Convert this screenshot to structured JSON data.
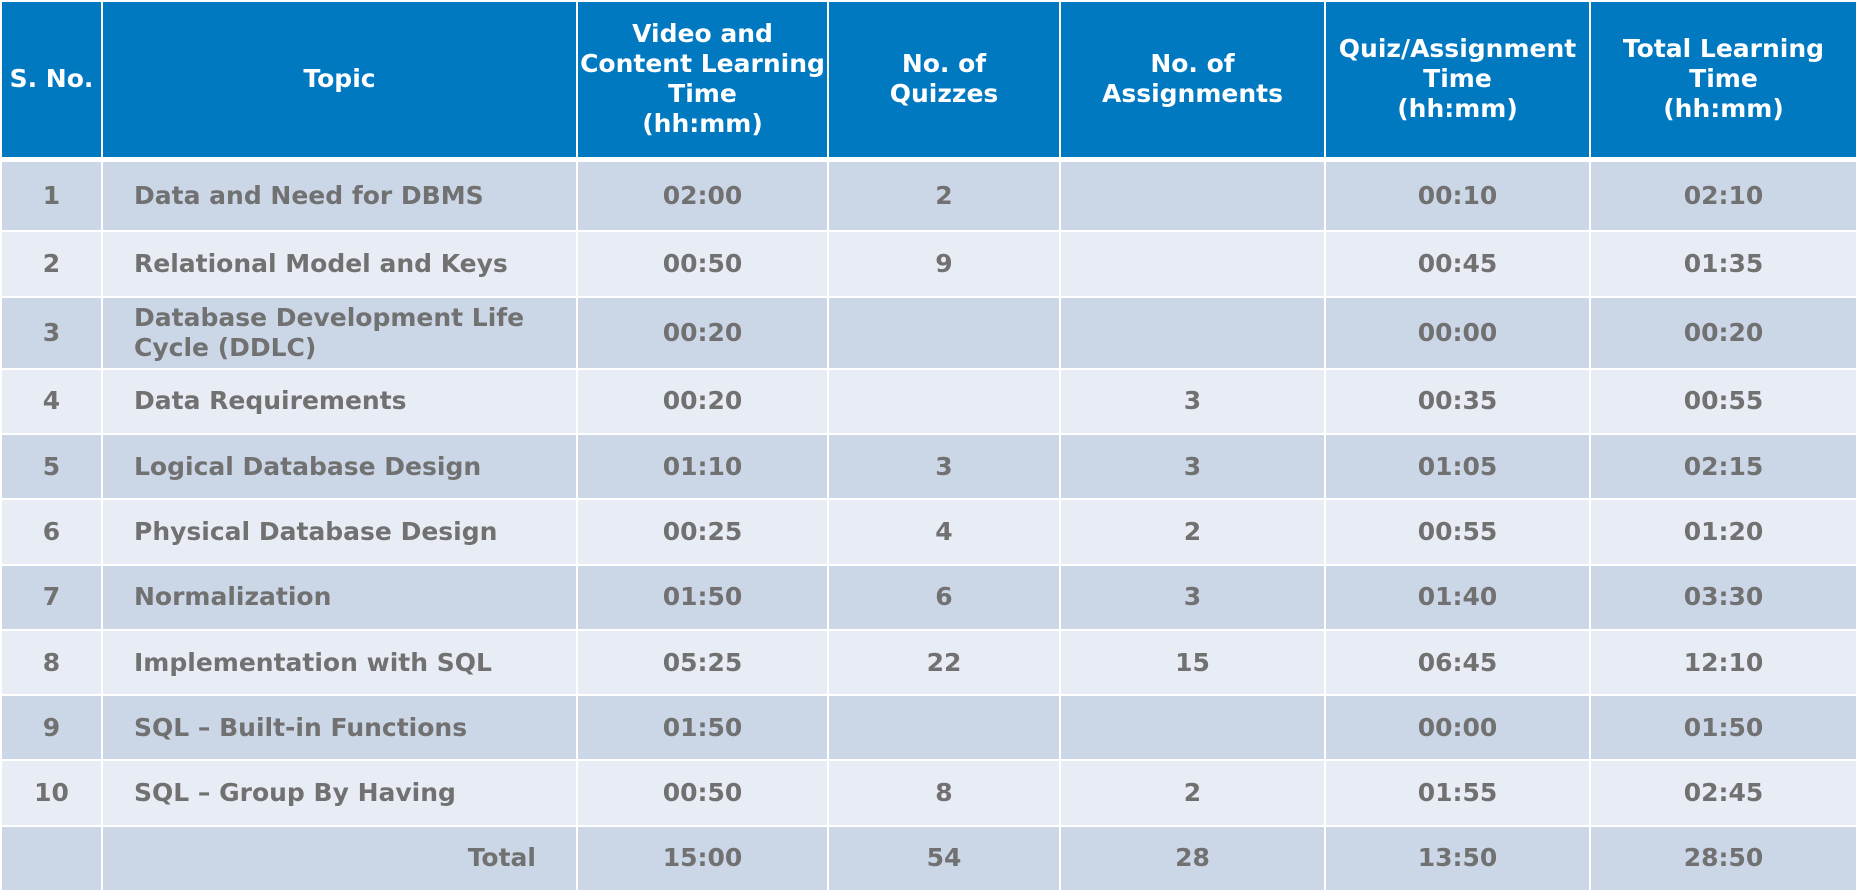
{
  "headers": [
    "S. No.",
    "Topic",
    "Video and\nContent Learning\nTime\n(hh:mm)",
    "No. of\nQuizzes",
    "No. of\nAssignments",
    "Quiz/Assignment\nTime\n(hh:mm)",
    "Total Learning\nTime\n(hh:mm)"
  ],
  "rows": [
    {
      "sno": "1",
      "topic": "Data and Need for DBMS",
      "video_time": "02:00",
      "quizzes": "2",
      "assignments": "",
      "qa_time": "00:10",
      "total_time": "02:10"
    },
    {
      "sno": "2",
      "topic": "Relational Model and Keys",
      "video_time": "00:50",
      "quizzes": "9",
      "assignments": "",
      "qa_time": "00:45",
      "total_time": "01:35"
    },
    {
      "sno": "3",
      "topic": "Database Development Life Cycle (DDLC)",
      "video_time": "00:20",
      "quizzes": "",
      "assignments": "",
      "qa_time": "00:00",
      "total_time": "00:20"
    },
    {
      "sno": "4",
      "topic": "Data Requirements",
      "video_time": "00:20",
      "quizzes": "",
      "assignments": "3",
      "qa_time": "00:35",
      "total_time": "00:55"
    },
    {
      "sno": "5",
      "topic": "Logical Database Design",
      "video_time": "01:10",
      "quizzes": "3",
      "assignments": "3",
      "qa_time": "01:05",
      "total_time": "02:15"
    },
    {
      "sno": "6",
      "topic": "Physical Database Design",
      "video_time": "00:25",
      "quizzes": "4",
      "assignments": "2",
      "qa_time": "00:55",
      "total_time": "01:20"
    },
    {
      "sno": "7",
      "topic": "Normalization",
      "video_time": "01:50",
      "quizzes": "6",
      "assignments": "3",
      "qa_time": "01:40",
      "total_time": "03:30"
    },
    {
      "sno": "8",
      "topic": "Implementation with SQL",
      "video_time": "05:25",
      "quizzes": "22",
      "assignments": "15",
      "qa_time": "06:45",
      "total_time": "12:10"
    },
    {
      "sno": "9",
      "topic": "SQL – Built-in Functions",
      "video_time": "01:50",
      "quizzes": "",
      "assignments": "",
      "qa_time": "00:00",
      "total_time": "01:50"
    },
    {
      "sno": "10",
      "topic": "SQL – Group By Having",
      "video_time": "00:50",
      "quizzes": "8",
      "assignments": "2",
      "qa_time": "01:55",
      "total_time": "02:45"
    }
  ],
  "total": {
    "label": "Total",
    "video_time": "15:00",
    "quizzes": "54",
    "assignments": "28",
    "qa_time": "13:50",
    "total_time": "28:50"
  },
  "colors": {
    "header_bg": "#0079c1",
    "row_dark": "#cbd6e7",
    "row_light": "#e8ecf5",
    "text": "#717171"
  }
}
